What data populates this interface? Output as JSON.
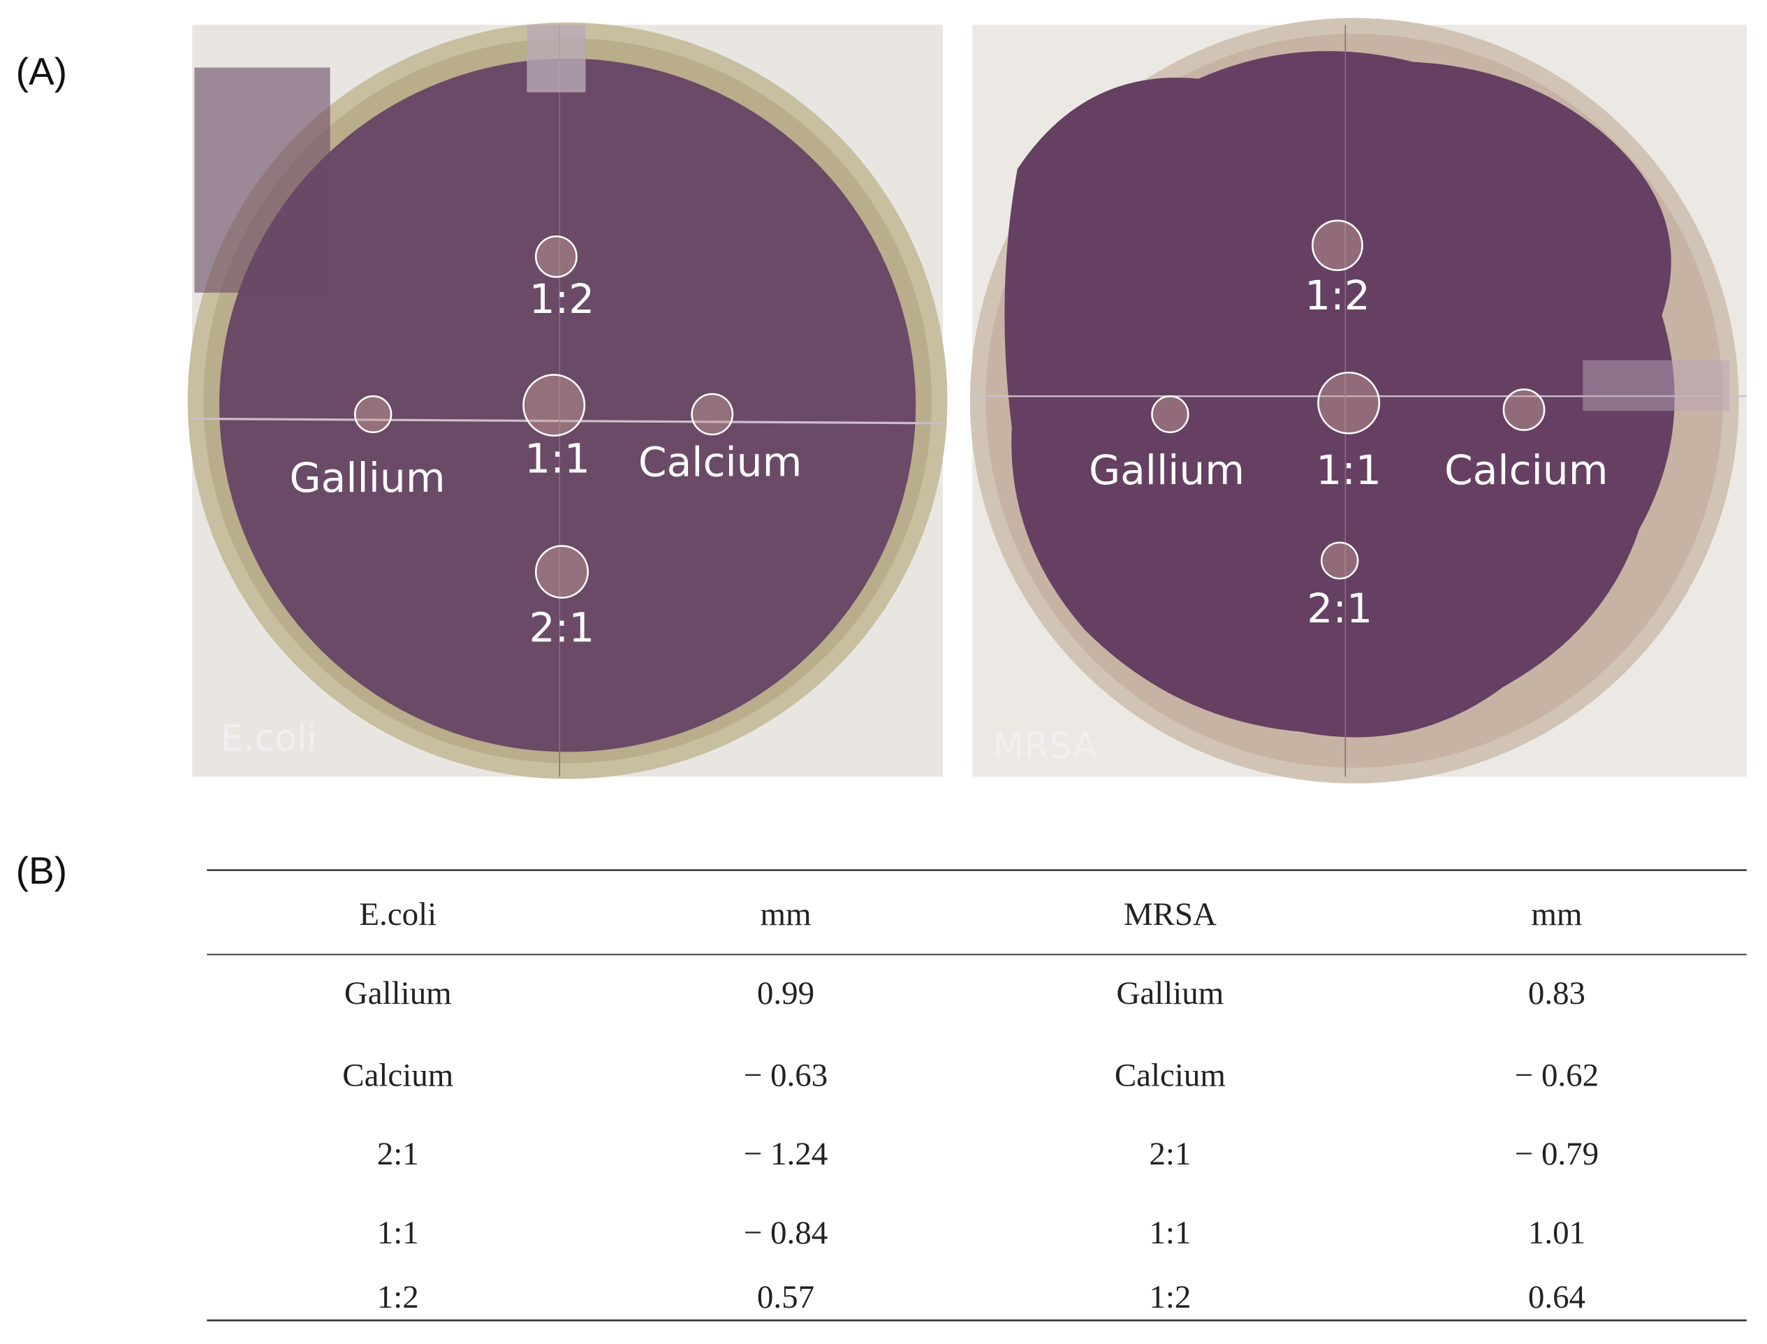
{
  "panel_a": {
    "label": "(A)",
    "plates": [
      {
        "name": "E.coli",
        "wells": [
          "1:2",
          "1:1",
          "2:1",
          "Gallium",
          "Calcium"
        ]
      },
      {
        "name": "MRSA",
        "wells": [
          "1:2",
          "1:1",
          "2:1",
          "Gallium",
          "Calcium"
        ]
      }
    ]
  },
  "panel_b": {
    "label": "(B)",
    "table": {
      "header": [
        "E.coli",
        "mm",
        "MRSA",
        "mm"
      ],
      "rows": [
        [
          "Gallium",
          "0.99",
          "Gallium",
          "0.83"
        ],
        [
          "Calcium",
          "− 0.63",
          "Calcium",
          "− 0.62"
        ],
        [
          "2:1",
          "− 1.24",
          "2:1",
          "− 0.79"
        ],
        [
          "1:1",
          "− 0.84",
          "1:1",
          "1.01"
        ],
        [
          "1:2",
          "0.57",
          "1:2",
          "0.64"
        ]
      ]
    }
  }
}
